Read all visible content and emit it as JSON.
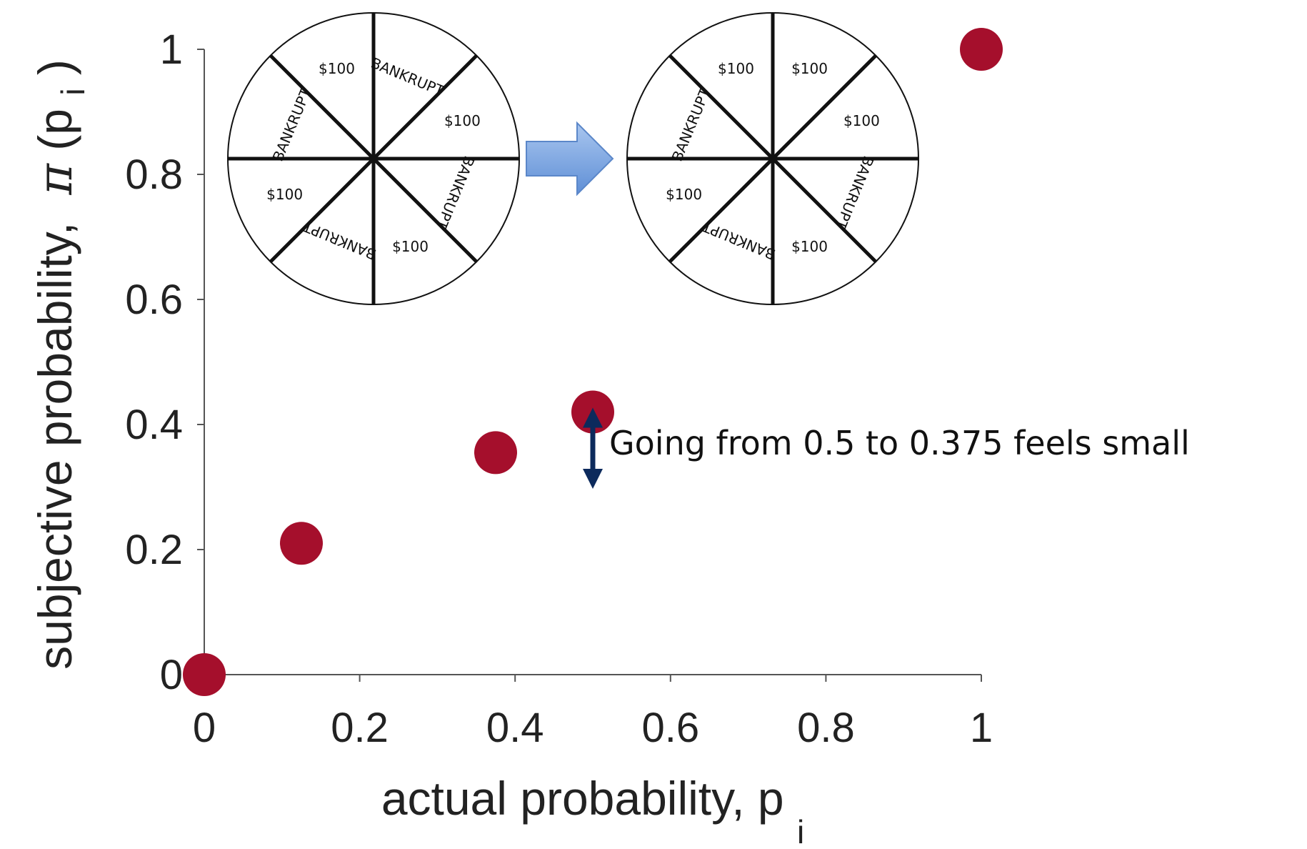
{
  "chart_data": {
    "type": "scatter",
    "title": "",
    "xlabel": "actual probability, p",
    "xlabel_subscript": "i",
    "ylabel_prefix": "subjective probability,",
    "ylabel_symbol": "π",
    "ylabel_paren_open": "(p",
    "ylabel_subscript": "i",
    "ylabel_paren_close": ")",
    "xlim": [
      0,
      1
    ],
    "ylim": [
      0,
      1
    ],
    "xticks": [
      "0",
      "0.2",
      "0.4",
      "0.6",
      "0.8",
      "1"
    ],
    "yticks": [
      "0",
      "0.2",
      "0.4",
      "0.6",
      "0.8",
      "1"
    ],
    "grid": false,
    "marker_color": "#a50f2c",
    "series": [
      {
        "points": [
          {
            "x": 0,
            "y": 0
          },
          {
            "x": 0.125,
            "y": 0.21
          },
          {
            "x": 0.375,
            "y": 0.355
          },
          {
            "x": 0.5,
            "y": 0.42
          },
          {
            "x": 1,
            "y": 1
          }
        ]
      }
    ],
    "annotation": {
      "text": "Going from 0.5 to 0.375 feels small",
      "arrow_from_y": 0.42,
      "arrow_to_y": 0.32,
      "arrow_x": 0.5,
      "arrow_color": "#0c2a5c"
    },
    "wheels": [
      {
        "segment_labels": [
          "BANKRUPT",
          "$100",
          "BANKRUPT",
          "$100",
          "BANKRUPT",
          "$100",
          "BANKRUPT",
          "$100"
        ]
      },
      {
        "segment_labels": [
          "$100",
          "$100",
          "BANKRUPT",
          "$100",
          "BANKRUPT",
          "$100",
          "BANKRUPT",
          "$100"
        ]
      }
    ],
    "transition_arrow_color": "#7ea6e0"
  }
}
